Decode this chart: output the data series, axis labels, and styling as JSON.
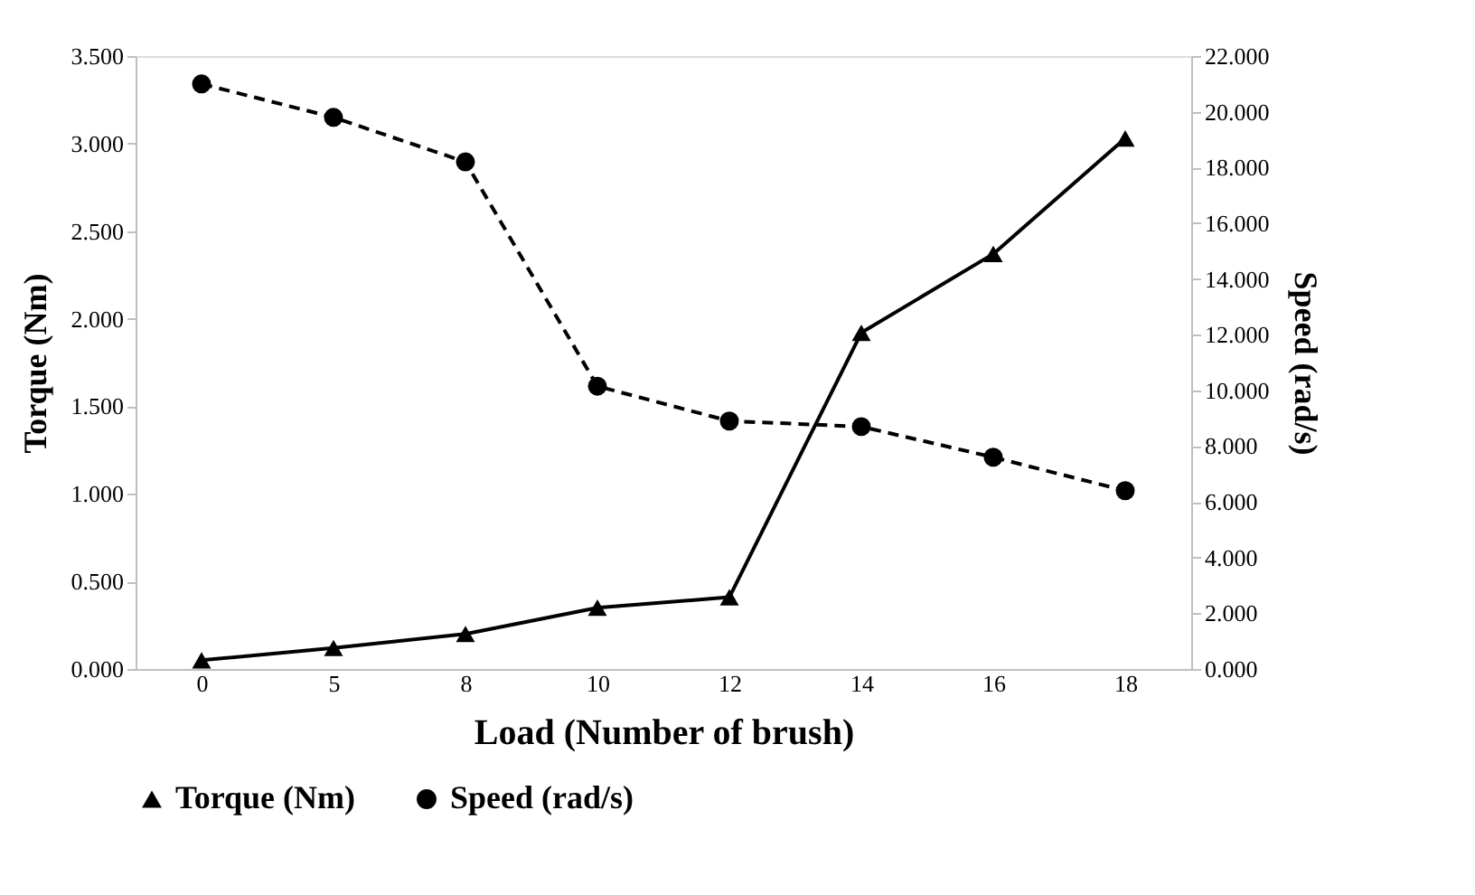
{
  "chart_data": {
    "type": "line",
    "xlabel": "Load (Number of brush)",
    "ylabel": "Torque (Nm)",
    "y2label": "Speed (rad/s)",
    "categories": [
      "0",
      "5",
      "8",
      "10",
      "12",
      "14",
      "16",
      "18"
    ],
    "series": [
      {
        "name": "Torque (Nm)",
        "color": "#000000",
        "marker": "triangle",
        "line_style": "solid",
        "values": [
          0.05,
          0.12,
          0.2,
          0.35,
          0.41,
          1.92,
          2.37,
          3.03
        ]
      },
      {
        "name": "Speed (rad/s)",
        "color": "#000000",
        "marker": "circle",
        "line_style": "dashed",
        "axis": "y2",
        "values": [
          21.0,
          19.8,
          18.2,
          10.15,
          8.9,
          8.7,
          7.6,
          6.4
        ]
      }
    ],
    "ylim": [
      0,
      3.5
    ],
    "yticks": [
      {
        "value": 0,
        "label": "0.000"
      },
      {
        "value": 0.5,
        "label": "0.500"
      },
      {
        "value": 1,
        "label": "1.000"
      },
      {
        "value": 1.5,
        "label": "1.500"
      },
      {
        "value": 2,
        "label": "2.000"
      },
      {
        "value": 2.5,
        "label": "2.500"
      },
      {
        "value": 3,
        "label": "3.000"
      },
      {
        "value": 3.5,
        "label": "3.500"
      }
    ],
    "y2lim": [
      0,
      22
    ],
    "y2ticks": [
      {
        "value": 0,
        "label": "0.000"
      },
      {
        "value": 2,
        "label": "2.000"
      },
      {
        "value": 4,
        "label": "4.000"
      },
      {
        "value": 6,
        "label": "6.000"
      },
      {
        "value": 8,
        "label": "8.000"
      },
      {
        "value": 10,
        "label": "10.000"
      },
      {
        "value": 12,
        "label": "12.000"
      },
      {
        "value": 14,
        "label": "14.000"
      },
      {
        "value": 16,
        "label": "16.000"
      },
      {
        "value": 18,
        "label": "18.000"
      },
      {
        "value": 20,
        "label": "20.000"
      },
      {
        "value": 22,
        "label": "22.000"
      }
    ],
    "legend": "bottom",
    "grid": false
  }
}
